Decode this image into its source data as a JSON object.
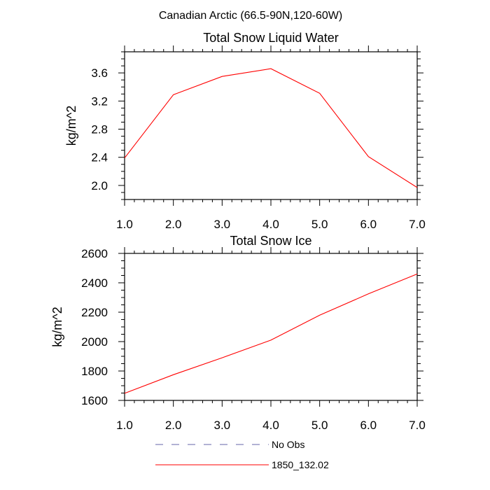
{
  "figure": {
    "title": "Canadian Arctic (66.5-90N,120-60W)"
  },
  "legend": [
    {
      "label": "No Obs",
      "color": "#6666aa",
      "style": "dashed"
    },
    {
      "label": "1850_132.02",
      "color": "#ff0000",
      "style": "solid"
    }
  ],
  "chart_data": [
    {
      "type": "line",
      "title": "Total Snow Liquid Water",
      "xlabel": "",
      "ylabel": "kg/m^2",
      "xlim": [
        1.0,
        7.0
      ],
      "ylim": [
        1.8,
        3.9
      ],
      "xticks": [
        1,
        2,
        3,
        4,
        5,
        6,
        7
      ],
      "xtick_labels": [
        "1.0",
        "2.0",
        "3.0",
        "4.0",
        "5.0",
        "6.0",
        "7.0"
      ],
      "yticks": [
        2.0,
        2.4,
        2.8,
        3.2,
        3.6
      ],
      "ytick_labels": [
        "2.0",
        "2.4",
        "2.8",
        "3.2",
        "3.6"
      ],
      "x": [
        1,
        2,
        3,
        4,
        5,
        6,
        7
      ],
      "series": [
        {
          "name": "1850_132.02",
          "color": "#ff0000",
          "values": [
            2.39,
            3.29,
            3.55,
            3.66,
            3.31,
            2.41,
            1.97
          ]
        }
      ]
    },
    {
      "type": "line",
      "title": "Total Snow Ice",
      "xlabel": "",
      "ylabel": "kg/m^2",
      "xlim": [
        1.0,
        7.0
      ],
      "ylim": [
        1600,
        2600
      ],
      "xticks": [
        1,
        2,
        3,
        4,
        5,
        6,
        7
      ],
      "xtick_labels": [
        "1.0",
        "2.0",
        "3.0",
        "4.0",
        "5.0",
        "6.0",
        "7.0"
      ],
      "yticks": [
        1600,
        1800,
        2000,
        2200,
        2400,
        2600
      ],
      "ytick_labels": [
        "1600",
        "1800",
        "2000",
        "2200",
        "2400",
        "2600"
      ],
      "x": [
        1,
        2,
        3,
        4,
        5,
        6,
        7
      ],
      "series": [
        {
          "name": "1850_132.02",
          "color": "#ff0000",
          "values": [
            1648,
            1775,
            1890,
            2010,
            2180,
            2325,
            2460
          ]
        }
      ]
    }
  ]
}
